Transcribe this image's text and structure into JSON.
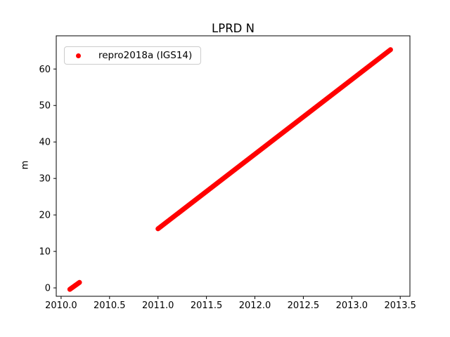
{
  "chart_data": {
    "type": "scatter",
    "title": "LPRD N",
    "xlabel": "",
    "ylabel": "m",
    "xlim": [
      2009.95,
      2013.6
    ],
    "ylim": [
      -2.3,
      69.1
    ],
    "x_ticks": [
      2010.0,
      2010.5,
      2011.0,
      2011.5,
      2012.0,
      2012.5,
      2013.0,
      2013.5
    ],
    "x_tick_labels": [
      "2010.0",
      "2010.5",
      "2011.0",
      "2011.5",
      "2012.0",
      "2012.5",
      "2013.0",
      "2013.5"
    ],
    "y_ticks": [
      0,
      10,
      20,
      30,
      40,
      50,
      60
    ],
    "y_tick_labels": [
      "0",
      "10",
      "20",
      "30",
      "40",
      "50",
      "60"
    ],
    "grid": false,
    "legend_position": "upper left",
    "series": [
      {
        "name": "repro2018a (IGS14)",
        "color": "#ff0000",
        "marker": "dot",
        "segments": [
          {
            "x": [
              2010.09,
              2010.19
            ],
            "y": [
              -0.4,
              1.5
            ]
          },
          {
            "x": [
              2011.0,
              2013.4
            ],
            "y": [
              16.2,
              65.3
            ]
          }
        ]
      }
    ]
  },
  "colors": {
    "series": "#ff0000",
    "axis": "#000000",
    "legend_border": "#cccccc",
    "background": "#ffffff"
  }
}
